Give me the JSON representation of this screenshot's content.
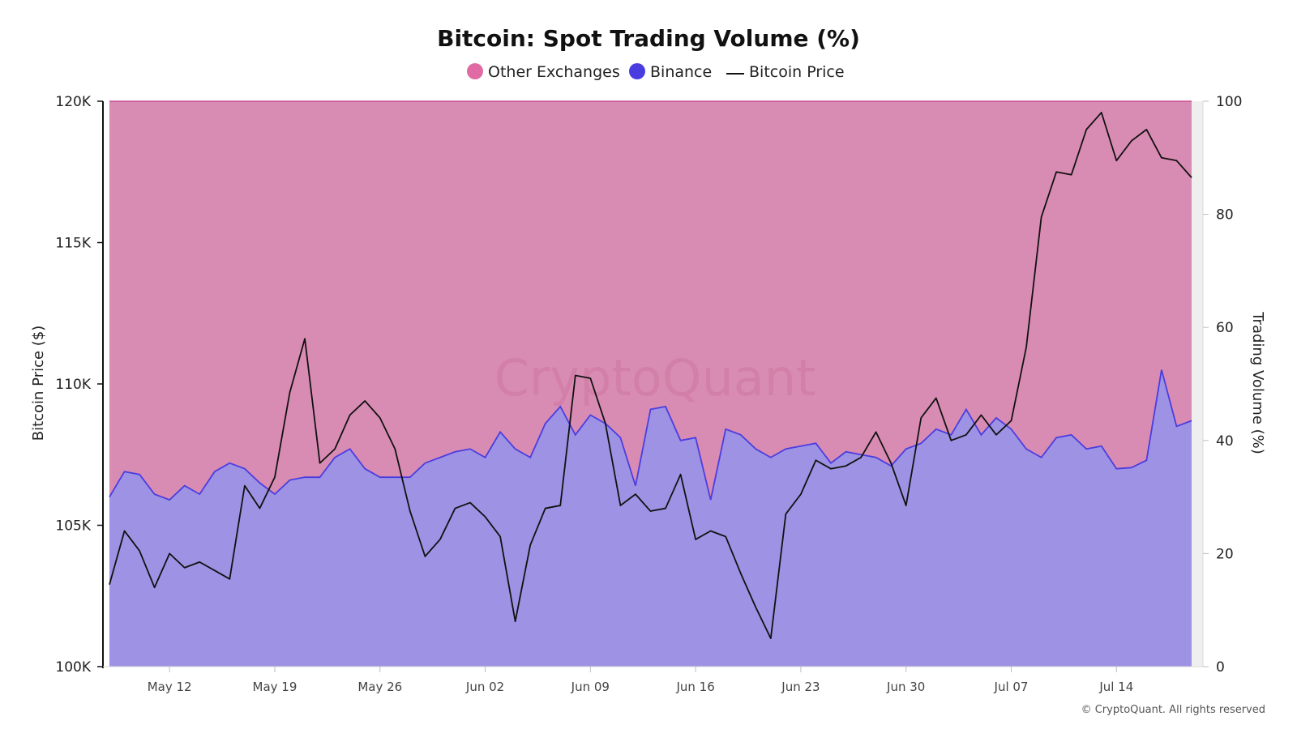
{
  "title": "Bitcoin: Spot Trading Volume (%)",
  "legend": [
    {
      "name": "Other Exchanges",
      "color": "#e06aa3",
      "shape": "circle"
    },
    {
      "name": "Binance",
      "color": "#4a3de0",
      "shape": "circle"
    },
    {
      "name": "Bitcoin Price",
      "color": "#111111",
      "shape": "line"
    }
  ],
  "watermark": "CryptoQuant",
  "copyright": "© CryptoQuant. All rights reserved",
  "colors": {
    "other_fill": "#d98cb3",
    "binance_fill": "#9d92e3",
    "binance_line": "#4a3de0",
    "top_line": "#cc4f8f",
    "price_line": "#111111"
  },
  "chart_data": {
    "type": "area",
    "x_start": "May 08",
    "x_tick_labels": [
      "May 12",
      "May 19",
      "May 26",
      "Jun 02",
      "Jun 09",
      "Jun 16",
      "Jun 23",
      "Jun 30",
      "Jul 07",
      "Jul 14"
    ],
    "y_left": {
      "label": "Bitcoin Price ($)",
      "range": [
        100000,
        120000
      ],
      "ticks": [
        "100K",
        "105K",
        "110K",
        "115K",
        "120K"
      ]
    },
    "y_right": {
      "label": "Trading Volume (%)",
      "range": [
        0,
        100
      ],
      "ticks": [
        "0",
        "20",
        "40",
        "60",
        "80",
        "100"
      ]
    },
    "series": [
      {
        "name": "Binance",
        "axis": "right",
        "values": [
          30,
          34.5,
          34,
          30.5,
          29.5,
          32,
          30.5,
          34.5,
          36,
          35,
          32.5,
          30.5,
          33,
          33.5,
          33.5,
          37,
          38.5,
          35,
          33.5,
          33.5,
          33.5,
          36,
          37,
          38,
          38.5,
          37,
          41.5,
          38.5,
          37,
          43,
          46,
          41,
          44.5,
          43,
          40.5,
          32,
          45.5,
          46,
          40,
          40.5,
          29.5,
          42,
          41,
          38.5,
          37,
          38.5,
          39,
          39.5,
          36,
          38,
          37.5,
          37,
          35.5,
          38.5,
          39.5,
          42,
          41,
          45.5,
          41,
          44,
          42,
          38.5,
          37,
          40.5,
          41,
          38.5,
          39,
          35,
          35.2,
          36.5,
          52.5,
          42.5,
          43.5
        ]
      },
      {
        "name": "Other Exchanges",
        "axis": "right",
        "note": "stacked on Binance to 100%",
        "values": [
          70,
          65.5,
          66,
          69.5,
          70.5,
          68,
          69.5,
          65.5,
          64,
          65,
          67.5,
          69.5,
          67,
          66.5,
          66.5,
          63,
          61.5,
          65,
          66.5,
          66.5,
          66.5,
          64,
          63,
          62,
          61.5,
          63,
          58.5,
          61.5,
          63,
          57,
          54,
          59,
          55.5,
          57,
          59.5,
          68,
          54.5,
          54,
          60,
          59.5,
          70.5,
          58,
          59,
          61.5,
          63,
          61.5,
          61,
          60.5,
          64,
          62,
          62.5,
          63,
          64.5,
          61.5,
          60.5,
          58,
          59,
          54.5,
          59,
          56,
          58,
          61.5,
          63,
          59.5,
          59,
          61.5,
          61,
          65,
          64.8,
          63.5,
          47.5,
          57.5,
          56.5
        ]
      },
      {
        "name": "Bitcoin Price",
        "axis": "left",
        "values": [
          102900,
          104800,
          104100,
          102800,
          104000,
          103500,
          103700,
          103400,
          103100,
          106400,
          105600,
          106700,
          109700,
          111600,
          107200,
          107700,
          108900,
          109400,
          108800,
          107700,
          105500,
          103900,
          104500,
          105600,
          105800,
          105300,
          104600,
          101600,
          104300,
          105600,
          105700,
          110300,
          110200,
          108600,
          105700,
          106100,
          105500,
          105600,
          106800,
          104500,
          104800,
          104600,
          103300,
          102100,
          101000,
          105400,
          106100,
          107300,
          107000,
          107100,
          107400,
          108300,
          107200,
          105700,
          108800,
          109500,
          108000,
          108200,
          108900,
          108200,
          108700,
          111300,
          115900,
          117500,
          117400,
          119000,
          119600,
          117900,
          118600,
          119000,
          118000,
          117900,
          117300
        ]
      }
    ],
    "grid": false,
    "legend_position": "top-center"
  }
}
